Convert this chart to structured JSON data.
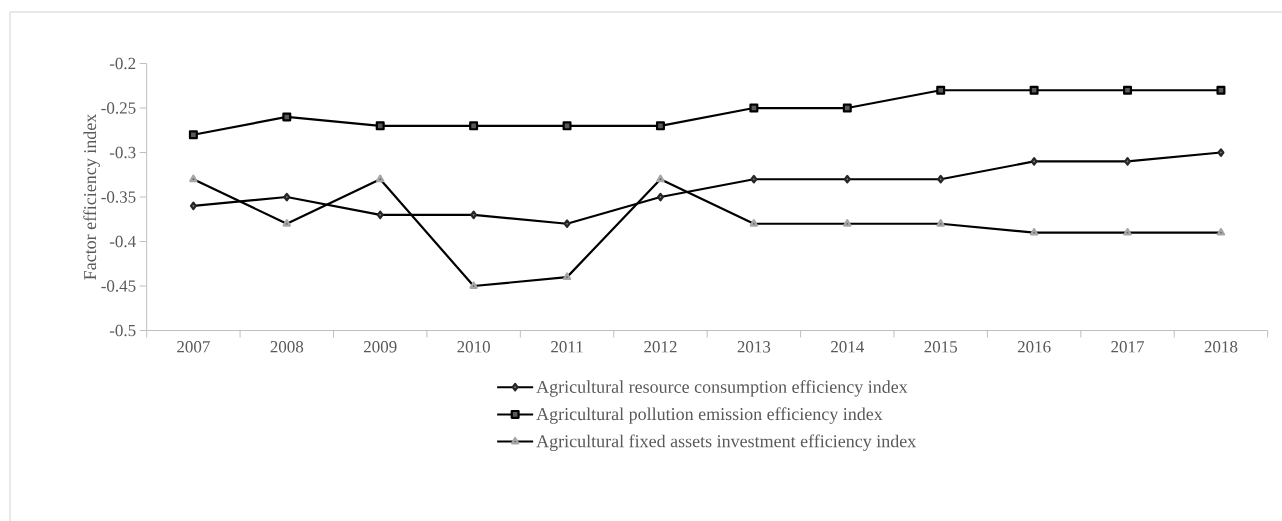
{
  "chart_data": {
    "type": "line",
    "ylabel": "Factor efficiency index",
    "categories": [
      "2007",
      "2008",
      "2009",
      "2010",
      "2011",
      "2012",
      "2013",
      "2014",
      "2015",
      "2016",
      "2017",
      "2018"
    ],
    "series": [
      {
        "name": "Agricultural resource consumption efficiency index",
        "color": "#000000",
        "marker": "diamond",
        "values": [
          -0.36,
          -0.35,
          -0.37,
          -0.37,
          -0.38,
          -0.35,
          -0.33,
          -0.33,
          -0.33,
          -0.31,
          -0.31,
          -0.3
        ]
      },
      {
        "name": "Agricultural pollution emission efficiency index",
        "color": "#000000",
        "marker": "square",
        "values": [
          -0.28,
          -0.26,
          -0.27,
          -0.27,
          -0.27,
          -0.27,
          -0.25,
          -0.25,
          -0.23,
          -0.23,
          -0.23,
          -0.23
        ]
      },
      {
        "name": "Agricultural fixed assets investment efficiency index",
        "color": "#000000",
        "marker": "triangle",
        "values": [
          -0.33,
          -0.38,
          -0.33,
          -0.45,
          -0.44,
          -0.33,
          -0.38,
          -0.38,
          -0.38,
          -0.39,
          -0.39,
          -0.39
        ]
      }
    ],
    "ylim": [
      -0.5,
      -0.2
    ],
    "yticks": [
      -0.5,
      -0.45,
      -0.4,
      -0.35,
      -0.3,
      -0.25,
      -0.2
    ],
    "grid": false,
    "legend": "bottom",
    "line_style": "solid"
  }
}
